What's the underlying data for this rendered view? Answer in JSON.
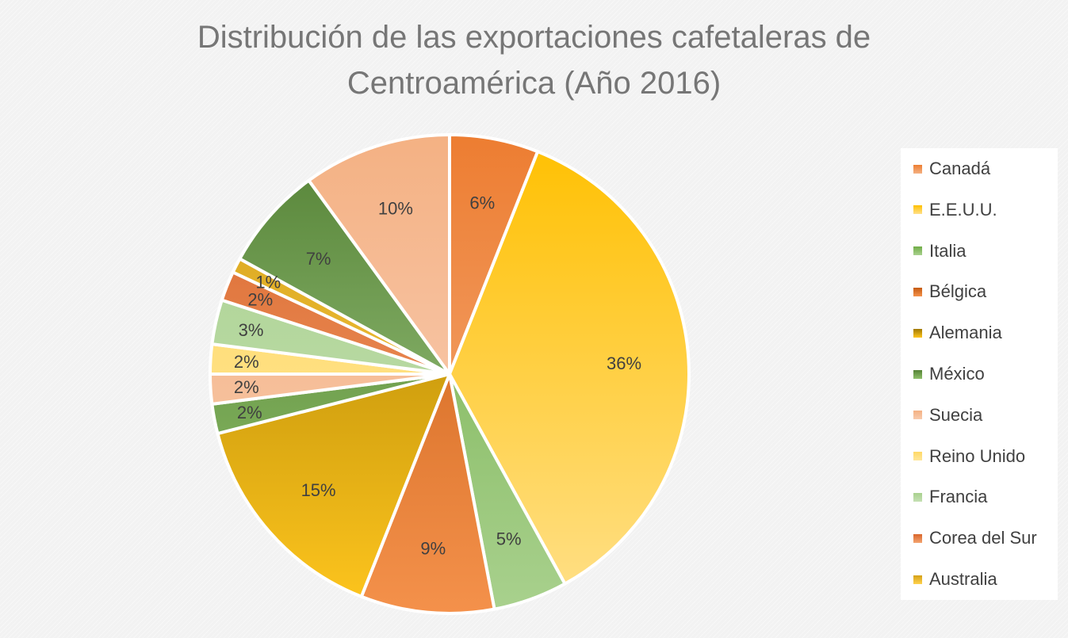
{
  "chart_data": {
    "type": "pie",
    "title_lines": [
      "Distribución de las exportaciones cafetaleras de",
      "Centroamérica (Año 2016)"
    ],
    "legend_position": "right",
    "slices": [
      {
        "name": "Canadá",
        "value": 6,
        "label": "6%",
        "color_dark": "#ED7D31",
        "color_light": "#F4B183"
      },
      {
        "name": "E.E.U.U.",
        "value": 36,
        "label": "36%",
        "color_dark": "#FFC000",
        "color_light": "#FFE08A"
      },
      {
        "name": "Italia",
        "value": 5,
        "label": "5%",
        "color_dark": "#70AD47",
        "color_light": "#A9D18E"
      },
      {
        "name": "Bélgica",
        "value": 9,
        "label": "9%",
        "color_dark": "#C55A11",
        "color_light": "#F4914B"
      },
      {
        "name": "Alemania",
        "value": 15,
        "label": "15%",
        "color_dark": "#A07800",
        "color_light": "#FFC61E"
      },
      {
        "name": "México",
        "value": 2,
        "label": "2%",
        "color_dark": "#548235",
        "color_light": "#8FC06A"
      },
      {
        "name": "Suecia",
        "value": 2,
        "label": "2%",
        "color_dark": "#F4B183",
        "color_light": "#F8CBAD"
      },
      {
        "name": "Reino Unido",
        "value": 2,
        "label": "2%",
        "color_dark": "#FFD966",
        "color_light": "#FFE699"
      },
      {
        "name": "Francia",
        "value": 3,
        "label": "3%",
        "color_dark": "#A9D18E",
        "color_light": "#C5E0B4"
      },
      {
        "name": "Corea del Sur",
        "value": 2,
        "label": "2%",
        "color_dark": "#D9652B",
        "color_light": "#F4A470"
      },
      {
        "name": "Australia",
        "value": 1,
        "label": "1%",
        "color_dark": "#D4A017",
        "color_light": "#FFD24D"
      },
      {
        "name": "",
        "value": 7,
        "label": "7%",
        "color_dark": "#548235",
        "color_light": "#A9D18E"
      },
      {
        "name": "",
        "value": 10,
        "label": "10%",
        "color_dark": "#F4B183",
        "color_light": "#FAD4C0"
      }
    ]
  }
}
